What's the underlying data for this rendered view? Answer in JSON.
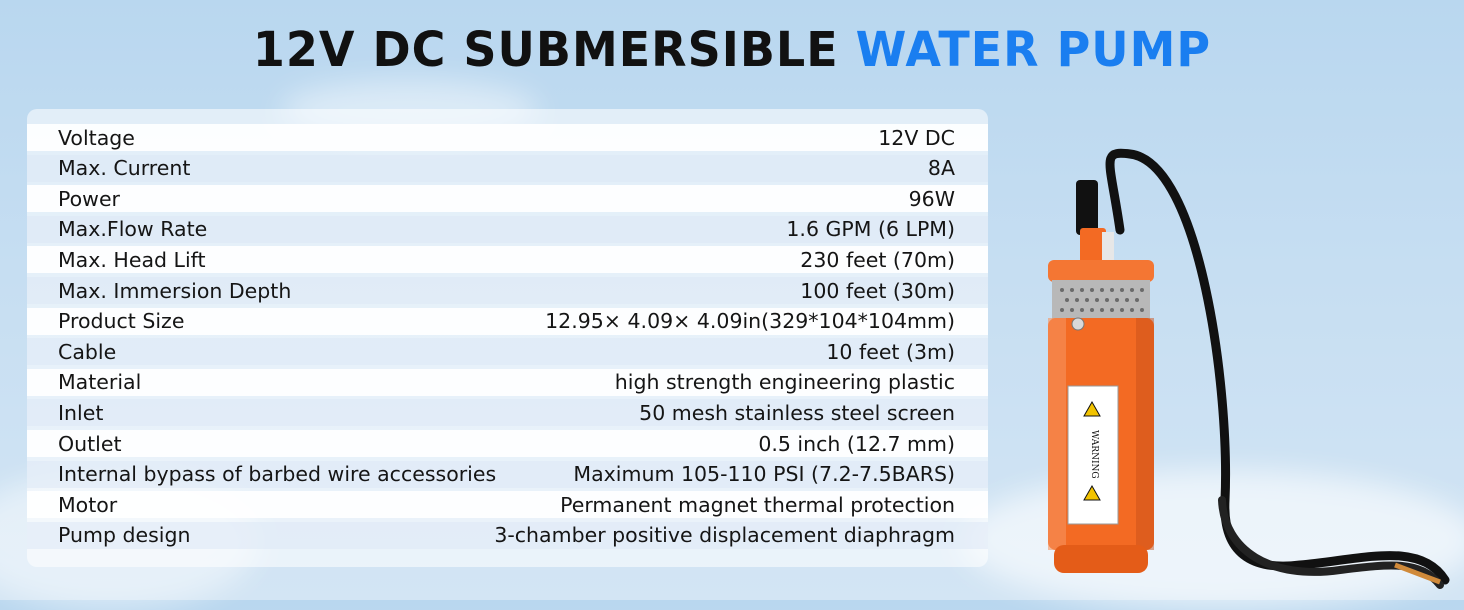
{
  "title": {
    "part1": "12V DC SUBMERSIBLE ",
    "part2": "WATER PUMP"
  },
  "colors": {
    "accent": "#1a7ef0",
    "pump_body": "#f36a23",
    "sky": "#c6def2"
  },
  "specs": [
    {
      "label": "Voltage",
      "value": "12V DC"
    },
    {
      "label": "Max. Current",
      "value": "8A"
    },
    {
      "label": "Power",
      "value": "96W"
    },
    {
      "label": "Max.Flow Rate",
      "value": "1.6 GPM (6 LPM)"
    },
    {
      "label": "Max. Head Lift",
      "value": "230 feet (70m)"
    },
    {
      "label": "Max. Immersion Depth",
      "value": "100 feet (30m)"
    },
    {
      "label": "Product Size",
      "value": "12.95× 4.09× 4.09in(329*104*104mm)"
    },
    {
      "label": "Cable",
      "value": "10 feet (3m)"
    },
    {
      "label": "Material",
      "value": "high strength engineering plastic"
    },
    {
      "label": "Inlet",
      "value": "50 mesh stainless steel screen"
    },
    {
      "label": "Outlet",
      "value": "0.5 inch (12.7 mm)"
    },
    {
      "label": "Internal bypass of barbed wire accessories",
      "value": "Maximum 105-110 PSI (7.2-7.5BARS)"
    },
    {
      "label": "Motor",
      "value": "Permanent magnet thermal protection"
    },
    {
      "label": "Pump design",
      "value": "3-chamber positive displacement diaphragm"
    }
  ],
  "pump_label": {
    "warning": "WARNING"
  },
  "icons": [
    "pump-image",
    "warning-triangle-icon"
  ]
}
